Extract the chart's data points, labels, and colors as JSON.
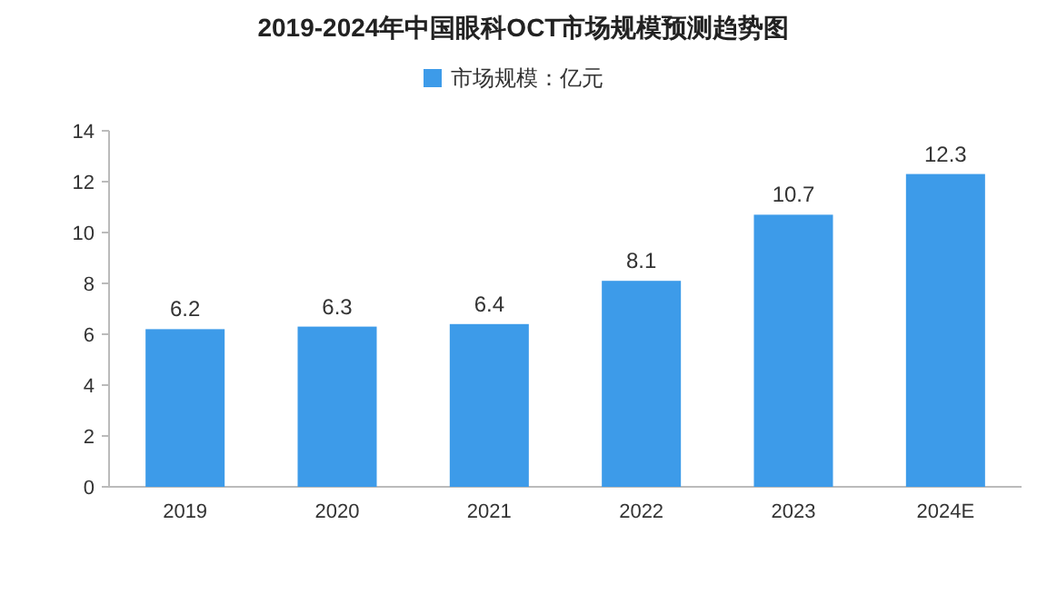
{
  "chart_data": {
    "type": "bar",
    "title": "2019-2024年中国眼科OCT市场规模预测趋势图",
    "categories": [
      "2019",
      "2020",
      "2021",
      "2022",
      "2023",
      "2024E"
    ],
    "series": [
      {
        "name": "市场规模：亿元",
        "color": "#3d9be9",
        "values": [
          6.2,
          6.3,
          6.4,
          8.1,
          10.7,
          12.3
        ]
      }
    ],
    "ylim": [
      0,
      14
    ],
    "yticks": [
      0,
      2,
      4,
      6,
      8,
      10,
      12,
      14
    ],
    "data_labels": true,
    "legend": "top"
  }
}
